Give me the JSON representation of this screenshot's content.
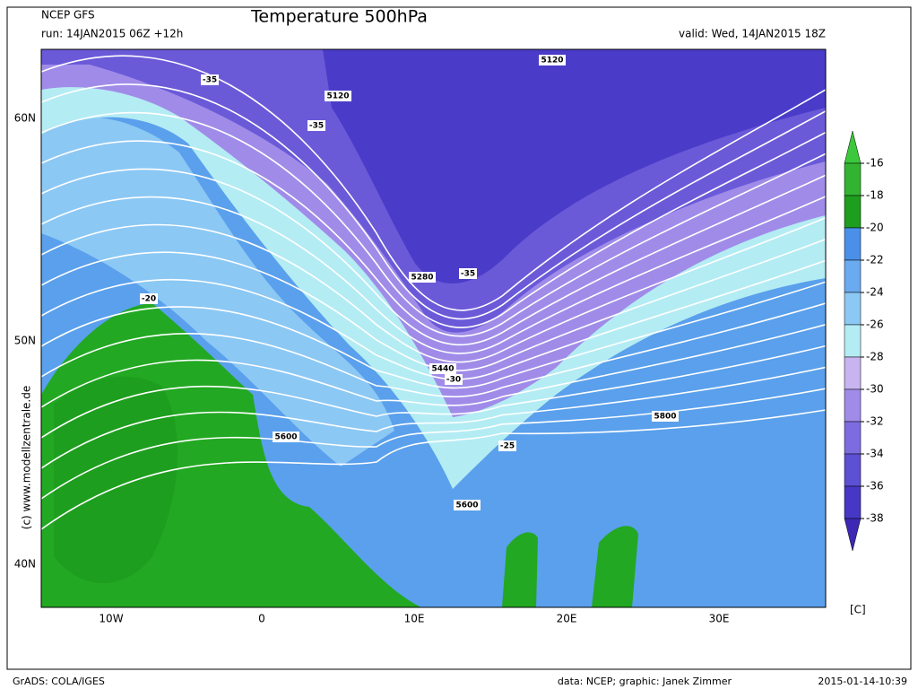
{
  "header": {
    "model": "NCEP GFS",
    "title": "Temperature 500hPa",
    "run": "run: 14JAN2015 06Z +12h",
    "valid": "valid: Wed, 14JAN2015 18Z"
  },
  "axes": {
    "lat_labels": [
      "60N",
      "50N",
      "40N"
    ],
    "lon_labels": [
      "10W",
      "0",
      "10E",
      "20E",
      "30E"
    ]
  },
  "contour_labels": [
    "5120",
    "5120",
    "5280",
    "5440",
    "5600",
    "5600",
    "5800",
    "-35",
    "-35",
    "-35",
    "-30",
    "-25",
    "-20"
  ],
  "colorbar": {
    "levels": [
      -16,
      -18,
      -20,
      -22,
      -24,
      -26,
      -28,
      -30,
      -32,
      -34,
      -36,
      -38
    ],
    "colors": [
      "#3cc83c",
      "#32b432",
      "#1e9e1e",
      "#4a90e8",
      "#6aaaf0",
      "#8cc8f4",
      "#b4ecf4",
      "#c8b4f0",
      "#a08ce8",
      "#7c6ce0",
      "#5c50d4",
      "#4638c4",
      "#3c28b4"
    ],
    "unit": "[C]"
  },
  "watermark": "(c) www.modellzentrale.de",
  "footer": {
    "left": "GrADS: COLA/IGES",
    "center": "data: NCEP; graphic: Janek Zimmer",
    "right": "2015-01-14-10:39"
  }
}
